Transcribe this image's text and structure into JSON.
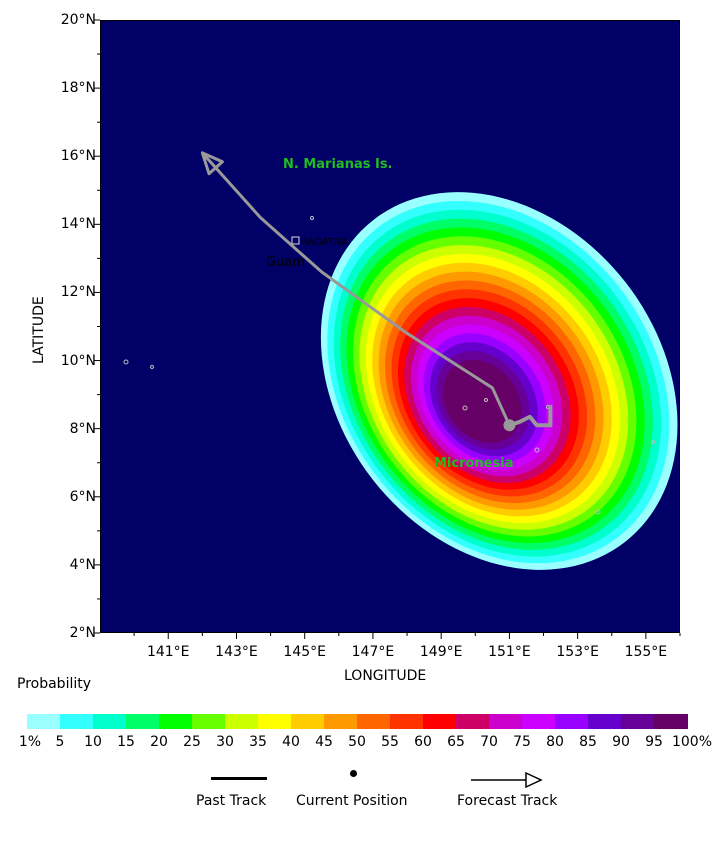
{
  "map": {
    "xlabel": "LONGITUDE",
    "ylabel": "LATITUDE",
    "lat_ticks": [
      "20°N",
      "18°N",
      "16°N",
      "14°N",
      "12°N",
      "10°N",
      "8°N",
      "6°N",
      "4°N",
      "2°N"
    ],
    "lon_ticks": [
      "141°E",
      "143°E",
      "145°E",
      "147°E",
      "149°E",
      "151°E",
      "153°E",
      "155°E"
    ],
    "extent": {
      "lon": [
        139.0,
        156.0
      ],
      "lat": [
        2.0,
        20.0
      ]
    },
    "ocean_color": "#000066",
    "places": {
      "marianas": "N. Marianas Is.",
      "hagatna": "HAGATNA",
      "guam": "Guam",
      "micronesia": "Micronesia"
    },
    "place_color": "#22bb22",
    "current_position": {
      "lon": 151.0,
      "lat": 8.1
    },
    "past_track": [
      [
        151.0,
        8.1
      ],
      [
        151.3,
        8.2
      ],
      [
        151.6,
        8.35
      ],
      [
        151.8,
        8.1
      ],
      [
        152.2,
        8.1
      ],
      [
        152.2,
        8.7
      ]
    ],
    "forecast_track": [
      [
        151.0,
        8.1
      ],
      [
        150.5,
        9.2
      ],
      [
        148.0,
        10.8
      ],
      [
        145.5,
        12.6
      ],
      [
        143.7,
        14.2
      ],
      [
        142.0,
        16.1
      ]
    ],
    "track_color": "#999999"
  },
  "colorbar": {
    "title": "Probability",
    "colors": [
      "#99ffff",
      "#33ffff",
      "#00ffcc",
      "#00ff66",
      "#00ff00",
      "#66ff00",
      "#ccff00",
      "#ffff00",
      "#ffcc00",
      "#ff9900",
      "#ff6600",
      "#ff3300",
      "#ff0000",
      "#cc0066",
      "#cc00cc",
      "#cc00ff",
      "#9900ff",
      "#6600cc",
      "#660099",
      "#660066"
    ],
    "labels": [
      "1%",
      "5",
      "10",
      "15",
      "20",
      "25",
      "30",
      "35",
      "40",
      "45",
      "50",
      "55",
      "60",
      "65",
      "70",
      "75",
      "80",
      "85",
      "90",
      "95",
      "100%"
    ]
  },
  "legend": {
    "past_track": "Past Track",
    "current_position": "Current Position",
    "forecast_track": "Forecast Track"
  }
}
